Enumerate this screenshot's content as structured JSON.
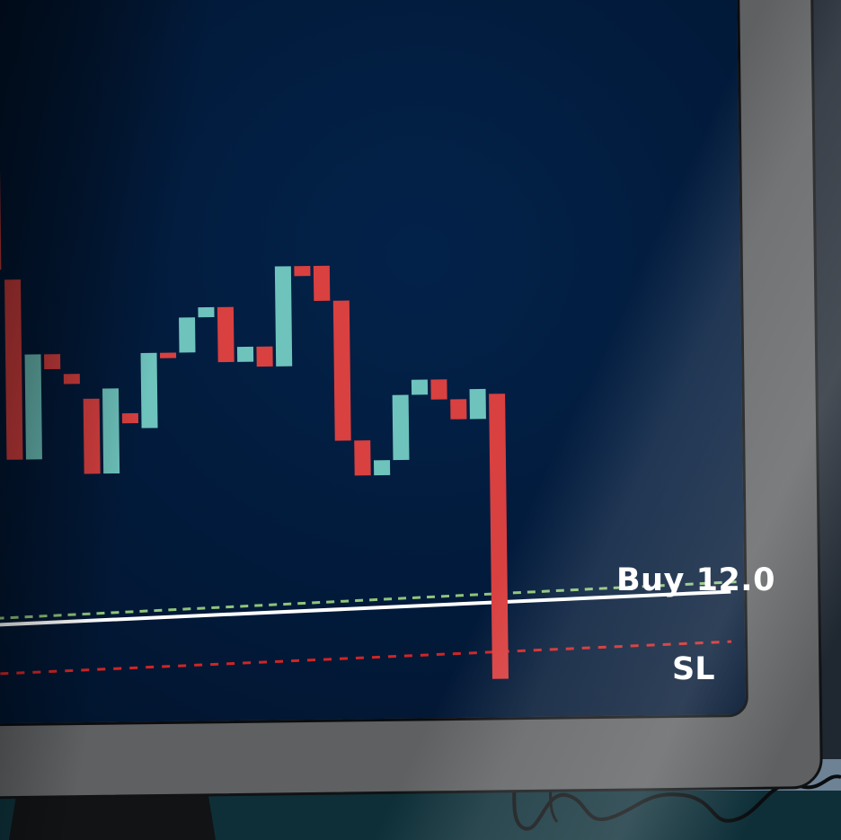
{
  "chart_data": {
    "type": "candlestick",
    "candles": [
      {
        "open": 95.0,
        "close": 91.0
      },
      {
        "open": 90.0,
        "close": 44.0
      },
      {
        "open": 42.0,
        "close": 6.0
      },
      {
        "open": 6.0,
        "close": 27.0
      },
      {
        "open": 27.0,
        "close": 24.0
      },
      {
        "open": 23.0,
        "close": 21.0
      },
      {
        "open": 18.0,
        "close": 3.0
      },
      {
        "open": 3.0,
        "close": 20.0
      },
      {
        "open": 15.0,
        "close": 13.0
      },
      {
        "open": 12.0,
        "close": 27.0
      },
      {
        "open": 27.0,
        "close": 26.0
      },
      {
        "open": 27.0,
        "close": 34.0
      },
      {
        "open": 34.0,
        "close": 36.0
      },
      {
        "open": 36.0,
        "close": 25.0
      },
      {
        "open": 25.0,
        "close": 28.0
      },
      {
        "open": 28.0,
        "close": 24.0
      },
      {
        "open": 24.0,
        "close": 44.0
      },
      {
        "open": 44.0,
        "close": 42.0
      },
      {
        "open": 44.0,
        "close": 37.0
      },
      {
        "open": 37.0,
        "close": 9.0
      },
      {
        "open": 9.0,
        "close": 2.0
      },
      {
        "open": 2.0,
        "close": 5.0
      },
      {
        "open": 5.0,
        "close": 18.0
      },
      {
        "open": 18.0,
        "close": 21.0
      },
      {
        "open": 21.0,
        "close": 17.0
      },
      {
        "open": 17.0,
        "close": 13.0
      },
      {
        "open": 13.0,
        "close": 19.0
      },
      {
        "open": 18.0,
        "close": -39.0
      }
    ],
    "ylim": [
      -42,
      97
    ],
    "buy_level": -25.0,
    "sl_level": -33.0,
    "up_color": "#6ec3bd",
    "down_color": "#d94040",
    "buy_line_color": "#ffffff",
    "buy_dash_color": "#8fc47a",
    "sl_line_color": "#d02525"
  },
  "labels": {
    "buy": "Buy 12.0",
    "sl": "SL"
  }
}
